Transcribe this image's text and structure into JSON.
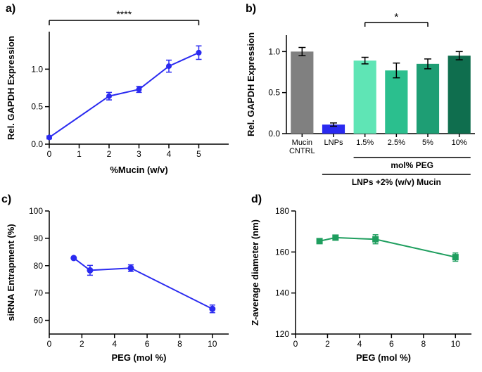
{
  "panel_a": {
    "label": "a)",
    "type": "line",
    "x": [
      0,
      2,
      3,
      4,
      5
    ],
    "y": [
      0.09,
      0.64,
      0.73,
      1.04,
      1.22
    ],
    "yerr": [
      0.02,
      0.05,
      0.04,
      0.08,
      0.09
    ],
    "line_color": "#2a2af0",
    "marker": "circle",
    "marker_size": 4,
    "xlabel": "%Mucin (w/v)",
    "ylabel": "Rel. GAPDH Expression",
    "xlim": [
      0,
      6
    ],
    "ylim": [
      0,
      1.5
    ],
    "xticks": [
      0,
      1,
      2,
      3,
      4,
      5
    ],
    "yticks": [
      0.0,
      0.5,
      1.0
    ],
    "sig_label": "****",
    "title_fontsize": 14,
    "tick_fontsize": 12
  },
  "panel_b": {
    "label": "b)",
    "type": "bar",
    "categories": [
      "Mucin CNTRL",
      "LNPs",
      "1.5%",
      "2.5%",
      "5%",
      "10%"
    ],
    "values": [
      1.0,
      0.11,
      0.89,
      0.77,
      0.85,
      0.95
    ],
    "yerr": [
      0.05,
      0.02,
      0.04,
      0.09,
      0.06,
      0.05
    ],
    "bar_colors": [
      "#808080",
      "#2a2af0",
      "#5fe5b5",
      "#2bbf8e",
      "#1e9e74",
      "#0f6e4e"
    ],
    "ylabel": "Rel. GAPDH Expression",
    "ylim": [
      0,
      1.2
    ],
    "yticks": [
      0.0,
      0.5,
      1.0
    ],
    "sig_label": "*",
    "group_label_top": "mol% PEG",
    "group_label_bottom": "LNPs +2% (w/v) Mucin",
    "bar_width": 0.72,
    "tick_fontsize": 11
  },
  "panel_c": {
    "label": "c)",
    "type": "line",
    "x": [
      1.5,
      2.5,
      5,
      10
    ],
    "y": [
      82.8,
      78.3,
      79.1,
      64.2
    ],
    "yerr": [
      0,
      1.8,
      1.2,
      1.4
    ],
    "line_color": "#2a2af0",
    "marker": "circle",
    "marker_size": 4.5,
    "xlabel": "PEG (mol %)",
    "ylabel": "siRNA Entrapment (%)",
    "xlim": [
      0,
      11
    ],
    "ylim": [
      55,
      100
    ],
    "xticks": [
      0,
      2,
      4,
      6,
      8,
      10
    ],
    "yticks": [
      60,
      70,
      80,
      90,
      100
    ],
    "tick_fontsize": 12
  },
  "panel_d": {
    "label": "d)",
    "type": "line",
    "x": [
      1.5,
      2.5,
      5,
      10
    ],
    "y": [
      165.3,
      167.0,
      166.2,
      157.5
    ],
    "yerr": [
      0.6,
      0.5,
      2.2,
      2.0
    ],
    "line_color": "#1e9e5e",
    "marker": "square",
    "marker_size": 4.5,
    "xlabel": "PEG (mol %)",
    "ylabel": "Z-average diameter (nm)",
    "xlim": [
      0,
      11
    ],
    "ylim": [
      120,
      180
    ],
    "xticks": [
      0,
      2,
      4,
      6,
      8,
      10
    ],
    "yticks": [
      120,
      140,
      160,
      180
    ],
    "tick_fontsize": 12
  },
  "colors": {
    "background": "#ffffff",
    "axis": "#000000"
  }
}
